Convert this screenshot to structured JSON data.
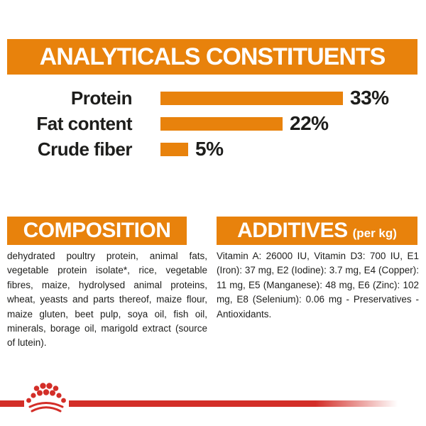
{
  "analyticals": {
    "title": "ANALYTICALS CONSTITUENTS"
  },
  "chart_data": {
    "type": "bar",
    "orientation": "horizontal",
    "title": "ANALYTICALS CONSTITUENTS",
    "categories": [
      "Protein",
      "Fat content",
      "Crude fiber"
    ],
    "values": [
      33,
      22,
      5
    ],
    "unit": "%",
    "value_labels": [
      "33%",
      "22%",
      "5%"
    ],
    "xlim": [
      0,
      35
    ],
    "grid": false,
    "legend": false,
    "bar_color": "#E8820C"
  },
  "composition": {
    "title": "COMPOSITION",
    "body": "dehydrated poultry protein, animal fats, vegetable protein isolate*, rice, vegetable fibres, maize, hydrolysed animal proteins, wheat, yeasts and parts thereof, maize flour, maize gluten, beet pulp, soya oil, fish oil, minerals, borage oil, marigold extract (source of lutein)."
  },
  "additives": {
    "title": "ADDITIVES",
    "title_suffix": "(per kg)",
    "body": "Vitamin A: 26000 IU, Vitamin D3: 700 IU, E1 (Iron): 37 mg, E2 (Iodine): 3.7 mg, E4 (Copper): 11 mg, E5 (Manganese): 48 mg, E6 (Zinc): 102 mg, E8 (Selenium): 0.06 mg - Preservatives - Antioxidants."
  },
  "footer": {
    "logo": "royal-canin-crown"
  },
  "colors": {
    "accent_orange": "#E8820C",
    "brand_red": "#D32E28",
    "text_dark": "#1D1D1B"
  }
}
